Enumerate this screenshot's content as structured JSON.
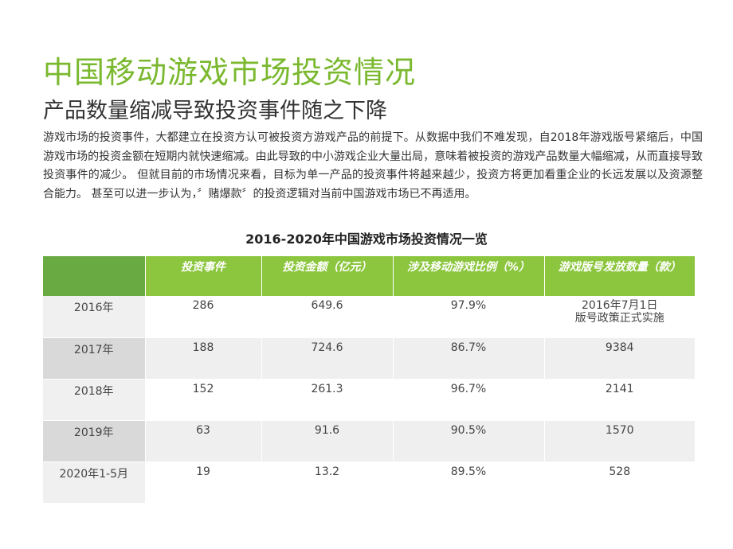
{
  "title": "中国移动游戏市场投资情况",
  "subtitle": "产品数量缩减导致投资事件随之下降",
  "paragraph": "游戏市场的投资事件，大都建立在投资方认可被投资方游戏产品的前提下。从数据中我们不难发现，自2018年游戏版号紧缩后，中国游戏市场的投资金额在短期内就快速缩减。由此导致的中小游戏企业大量出局，意味着被投资的游戏产品数量大幅缩减，从而直接导致投资事件的减少。 但就目前的市场情况来看，目标为单一产品的投资事件将越来越少，投资方将更加看重企业的长远发展以及资源整合能力。 甚至可以进一步认为，〞赌爆款〞的投资逻辑对当前中国游戏市场已不再适用。",
  "table": {
    "title": "2016-2020年中国游戏市场投资情况一览",
    "headers": [
      "",
      "投资事件",
      "投资金额（亿元）",
      "涉及移动游戏比例（%）",
      "游戏版号发放数量（款）"
    ],
    "rows": [
      {
        "year": "2016年",
        "events": "286",
        "amount": "649.6",
        "ratio": "97.9%",
        "licenses_line1": "2016年7月1日",
        "licenses_line2": "版号政策正式实施"
      },
      {
        "year": "2017年",
        "events": "188",
        "amount": "724.6",
        "ratio": "86.7%",
        "licenses": "9384"
      },
      {
        "year": "2018年",
        "events": "152",
        "amount": "261.3",
        "ratio": "96.7%",
        "licenses": "2141"
      },
      {
        "year": "2019年",
        "events": "63",
        "amount": "91.6",
        "ratio": "90.5%",
        "licenses": "1570"
      },
      {
        "year": "2020年1-5月",
        "events": "19",
        "amount": "13.2",
        "ratio": "89.5%",
        "licenses": "528"
      }
    ]
  },
  "colors": {
    "title_green": "#7ab82e",
    "header_green": "#8cc63f",
    "corner_green": "#6aaa43"
  }
}
